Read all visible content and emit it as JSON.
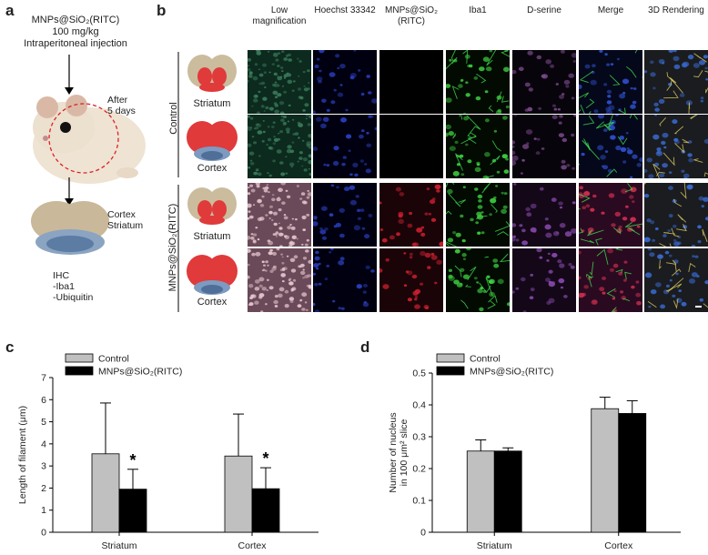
{
  "panel_a": {
    "letter": "a",
    "line1": "MNPs@SiO₂(RITC)",
    "line2": "100 mg/kg",
    "line3": "Intraperitoneal injection",
    "after1": "After",
    "after2": "5 days",
    "region1": "Cortex",
    "region2": "Striatum",
    "ihc1": "IHC",
    "ihc2": "-Iba1",
    "ihc3": "-Ubiquitin"
  },
  "panel_b": {
    "letter": "b",
    "columns": [
      "Low magnification",
      "Hoechst 33342",
      "MNPs@SiO₂ (RITC)",
      "Iba1",
      "D-serine",
      "Merge",
      "3D Rendering"
    ],
    "group_control": "Control",
    "group_mnps": "MNPs@SiO₂(RITC)",
    "rows": [
      "Striatum",
      "Cortex",
      "Striatum",
      "Cortex"
    ]
  },
  "panel_c": {
    "letter": "c",
    "legend": [
      "Control",
      "MNPs@SiO₂(RITC)"
    ]
  },
  "panel_d": {
    "letter": "d",
    "legend": [
      "Control",
      "MNPs@SiO₂(RITC)"
    ]
  },
  "chart_data": [
    {
      "type": "bar",
      "categories": [
        "Striatum",
        "Cortex"
      ],
      "series": [
        {
          "name": "Control",
          "values": [
            3.55,
            3.45
          ],
          "errors": [
            2.3,
            1.9
          ],
          "color": "#c0c0c0"
        },
        {
          "name": "MNPs@SiO₂(RITC)",
          "values": [
            1.95,
            1.97
          ],
          "errors": [
            0.9,
            0.95
          ],
          "color": "#000000"
        }
      ],
      "annotations": [
        "*",
        "*"
      ],
      "xlabel": "",
      "ylabel": "Length of filament (μm)",
      "ylim": [
        0,
        7
      ],
      "yticks": [
        0,
        1,
        2,
        3,
        4,
        5,
        6,
        7
      ],
      "legend_position": "top-left"
    },
    {
      "type": "bar",
      "categories": [
        "Striatum",
        "Cortex"
      ],
      "series": [
        {
          "name": "Control",
          "values": [
            0.255,
            0.388
          ],
          "errors": [
            0.035,
            0.036
          ],
          "color": "#c0c0c0"
        },
        {
          "name": "MNPs@SiO₂(RITC)",
          "values": [
            0.255,
            0.373
          ],
          "errors": [
            0.01,
            0.04
          ],
          "color": "#000000"
        }
      ],
      "xlabel": "",
      "ylabel": "Number of nucleus in 100 μm² slice",
      "ylim": [
        0,
        0.5
      ],
      "yticks": [
        "0",
        "0.1",
        "0.2",
        "0.3",
        "0.4",
        "0.5"
      ],
      "legend_position": "top-left"
    }
  ]
}
